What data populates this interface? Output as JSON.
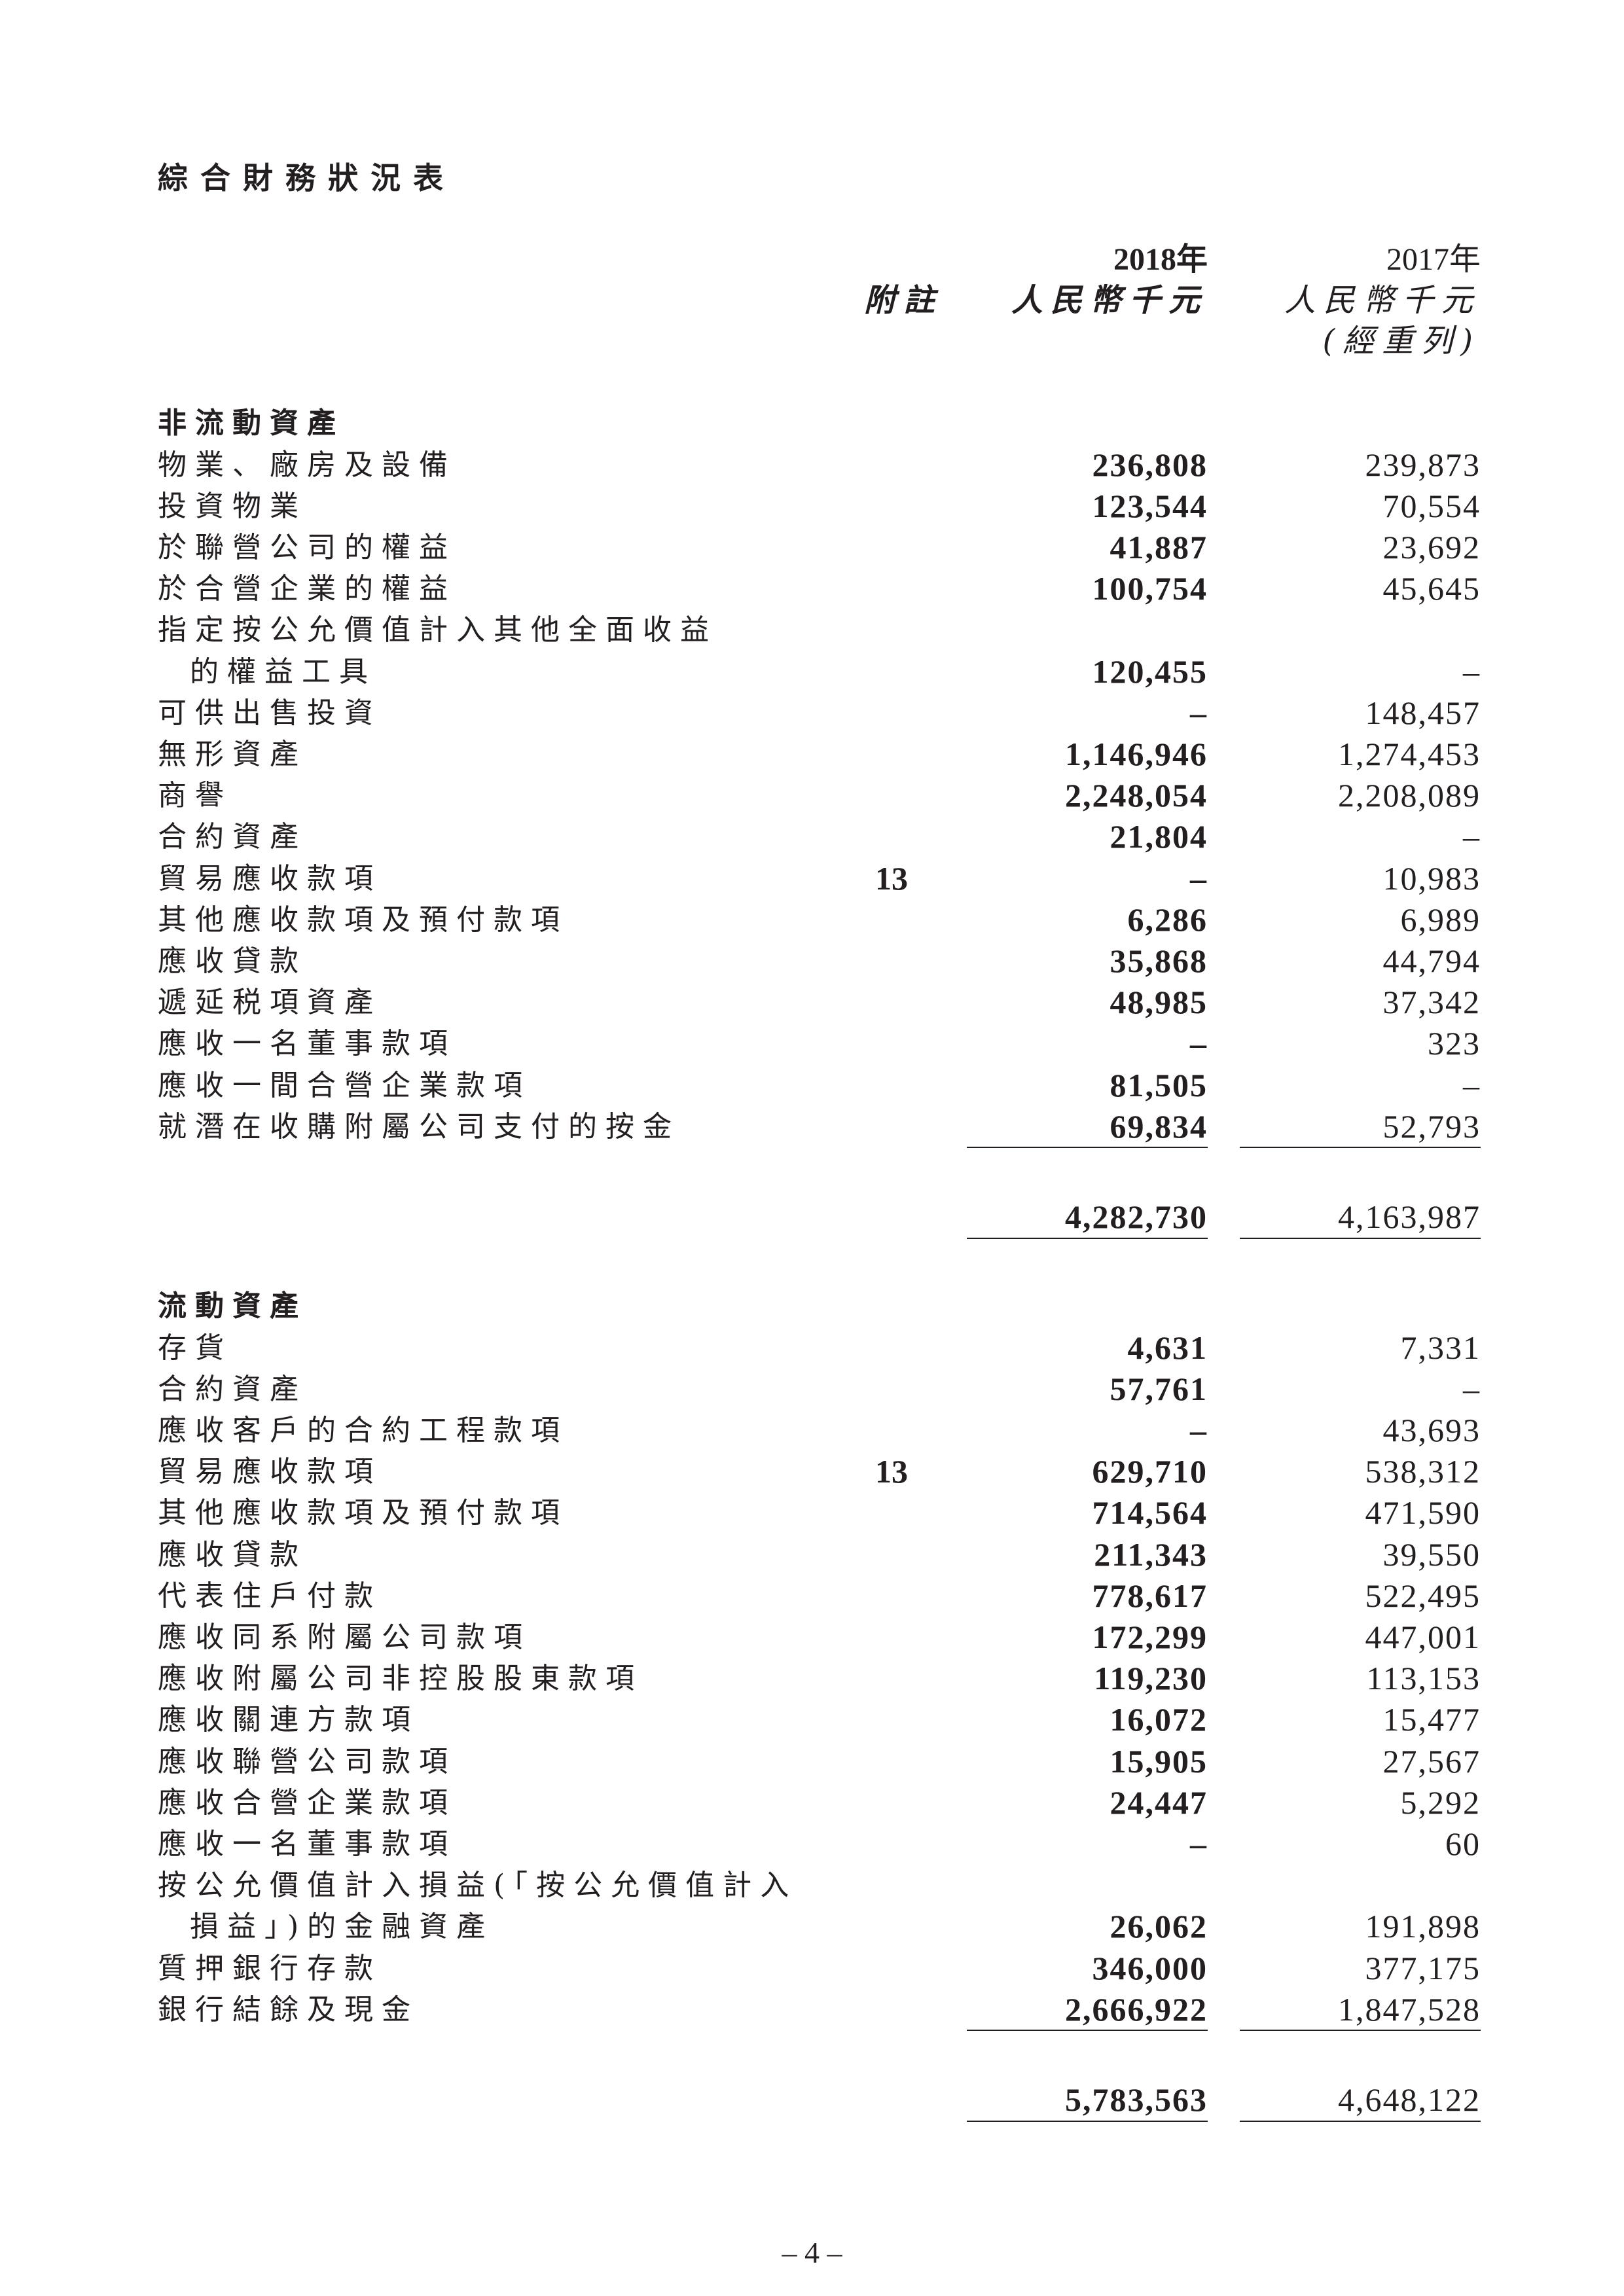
{
  "title": "綜合財務狀況表",
  "header": {
    "note": "附註",
    "col2018_year": "2018年",
    "col2018_unit": "人民幣千元",
    "col2017_year": "2017年",
    "col2017_unit": "人民幣千元",
    "col2017_remark": "(經重列)"
  },
  "sections": [
    {
      "heading": "非流動資產",
      "rows": [
        {
          "label": "物業、廠房及設備",
          "note": "",
          "y2018": "236,808",
          "y2017": "239,873"
        },
        {
          "label": "投資物業",
          "note": "",
          "y2018": "123,544",
          "y2017": "70,554"
        },
        {
          "label": "於聯營公司的權益",
          "note": "",
          "y2018": "41,887",
          "y2017": "23,692"
        },
        {
          "label": "於合營企業的權益",
          "note": "",
          "y2018": "100,754",
          "y2017": "45,645"
        },
        {
          "label": "指定按公允價值計入其他全面收益",
          "label_cont": "的權益工具",
          "note": "",
          "y2018": "120,455",
          "y2017": "–"
        },
        {
          "label": "可供出售投資",
          "note": "",
          "y2018": "–",
          "y2017": "148,457"
        },
        {
          "label": "無形資產",
          "note": "",
          "y2018": "1,146,946",
          "y2017": "1,274,453"
        },
        {
          "label": "商譽",
          "note": "",
          "y2018": "2,248,054",
          "y2017": "2,208,089"
        },
        {
          "label": "合約資產",
          "note": "",
          "y2018": "21,804",
          "y2017": "–"
        },
        {
          "label": "貿易應收款項",
          "note": "13",
          "y2018": "–",
          "y2017": "10,983"
        },
        {
          "label": "其他應收款項及預付款項",
          "note": "",
          "y2018": "6,286",
          "y2017": "6,989"
        },
        {
          "label": "應收貸款",
          "note": "",
          "y2018": "35,868",
          "y2017": "44,794"
        },
        {
          "label": "遞延税項資產",
          "note": "",
          "y2018": "48,985",
          "y2017": "37,342"
        },
        {
          "label": "應收一名董事款項",
          "note": "",
          "y2018": "–",
          "y2017": "323"
        },
        {
          "label": "應收一間合營企業款項",
          "note": "",
          "y2018": "81,505",
          "y2017": "–"
        },
        {
          "label": "就潛在收購附屬公司支付的按金",
          "note": "",
          "y2018": "69,834",
          "y2017": "52,793"
        }
      ],
      "total": {
        "y2018": "4,282,730",
        "y2017": "4,163,987"
      }
    },
    {
      "heading": "流動資產",
      "rows": [
        {
          "label": "存貨",
          "note": "",
          "y2018": "4,631",
          "y2017": "7,331"
        },
        {
          "label": "合約資產",
          "note": "",
          "y2018": "57,761",
          "y2017": "–"
        },
        {
          "label": "應收客戶的合約工程款項",
          "note": "",
          "y2018": "–",
          "y2017": "43,693"
        },
        {
          "label": "貿易應收款項",
          "note": "13",
          "y2018": "629,710",
          "y2017": "538,312"
        },
        {
          "label": "其他應收款項及預付款項",
          "note": "",
          "y2018": "714,564",
          "y2017": "471,590"
        },
        {
          "label": "應收貸款",
          "note": "",
          "y2018": "211,343",
          "y2017": "39,550"
        },
        {
          "label": "代表住戶付款",
          "note": "",
          "y2018": "778,617",
          "y2017": "522,495"
        },
        {
          "label": "應收同系附屬公司款項",
          "note": "",
          "y2018": "172,299",
          "y2017": "447,001"
        },
        {
          "label": "應收附屬公司非控股股東款項",
          "note": "",
          "y2018": "119,230",
          "y2017": "113,153"
        },
        {
          "label": "應收關連方款項",
          "note": "",
          "y2018": "16,072",
          "y2017": "15,477"
        },
        {
          "label": "應收聯營公司款項",
          "note": "",
          "y2018": "15,905",
          "y2017": "27,567"
        },
        {
          "label": "應收合營企業款項",
          "note": "",
          "y2018": "24,447",
          "y2017": "5,292"
        },
        {
          "label": "應收一名董事款項",
          "note": "",
          "y2018": "–",
          "y2017": "60"
        },
        {
          "label": "按公允價值計入損益(「按公允價值計入",
          "label_cont": "損益」)的金融資產",
          "note": "",
          "y2018": "26,062",
          "y2017": "191,898"
        },
        {
          "label": "質押銀行存款",
          "note": "",
          "y2018": "346,000",
          "y2017": "377,175"
        },
        {
          "label": "銀行結餘及現金",
          "note": "",
          "y2018": "2,666,922",
          "y2017": "1,847,528"
        }
      ],
      "total": {
        "y2018": "5,783,563",
        "y2017": "4,648,122"
      }
    }
  ],
  "page_number": "– 4 –"
}
